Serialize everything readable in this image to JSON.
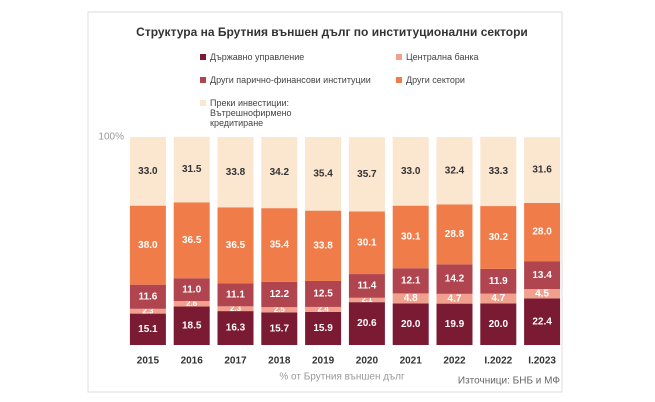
{
  "chart_data": {
    "type": "stacked_bar",
    "title": "Структура на Брутния външен дълг по институционални сектори",
    "subtitle": "% от Брутния външен дълг",
    "source": "Източници: БНБ и МФ",
    "categories": [
      "2015",
      "2016",
      "2017",
      "2018",
      "2019",
      "2020",
      "2021",
      "2022",
      "I.2022",
      "I.2023"
    ],
    "series": [
      {
        "name": "Държавно управление",
        "color": "#7b1a33",
        "values": [
          15.1,
          18.5,
          16.3,
          15.7,
          15.9,
          20.6,
          20.0,
          19.9,
          20.0,
          22.4
        ],
        "value_labels": [
          "15.1",
          "18.5",
          "16.3",
          "15.7",
          "15.9",
          "20.6",
          "20.0",
          "19.9",
          "20.0",
          "22.4"
        ]
      },
      {
        "name": "Централна банка",
        "color": "#f2a08e",
        "values": [
          2.3,
          2.6,
          2.3,
          2.5,
          2.4,
          2.1,
          4.8,
          4.7,
          4.7,
          4.5
        ],
        "value_labels": [
          "2.3",
          "2.6",
          "2.3",
          "2.5",
          "2.4",
          "2.1",
          "4.8",
          "4.7",
          "4.7",
          "4.5"
        ]
      },
      {
        "name": "Други парично-финансови институции",
        "color": "#b0444f",
        "values": [
          11.6,
          11.0,
          11.1,
          12.2,
          12.5,
          11.4,
          12.1,
          14.2,
          11.9,
          13.4
        ],
        "value_labels": [
          "11.6",
          "11.0",
          "11.1",
          "12.2",
          "12.5",
          "11.4",
          "12.1",
          "14.2",
          "11.9",
          "13.4"
        ]
      },
      {
        "name": "Други сектори",
        "color": "#f07c4a",
        "values": [
          38.0,
          36.5,
          36.5,
          35.4,
          33.8,
          30.1,
          30.1,
          28.8,
          30.2,
          28.0
        ],
        "value_labels": [
          "38.0",
          "36.5",
          "36.5",
          "35.4",
          "33.8",
          "30.1",
          "30.1",
          "28.8",
          "30.2",
          "28.0"
        ]
      },
      {
        "name": "Преки инвестиции: Вътрешнофирмено кредитиране",
        "color": "#fbe6d0",
        "values": [
          33.0,
          31.5,
          33.8,
          34.2,
          35.4,
          35.7,
          33.0,
          32.4,
          33.3,
          31.6
        ],
        "value_labels": [
          "33.0",
          "31.5",
          "33.8",
          "34.2",
          "35.4",
          "35.7",
          "33.0",
          "32.4",
          "33.3",
          "31.6"
        ]
      }
    ],
    "ylim": [
      0,
      100
    ],
    "yticks": [
      {
        "value": 100,
        "label": "100%"
      }
    ],
    "grid": false,
    "legend": "top"
  }
}
